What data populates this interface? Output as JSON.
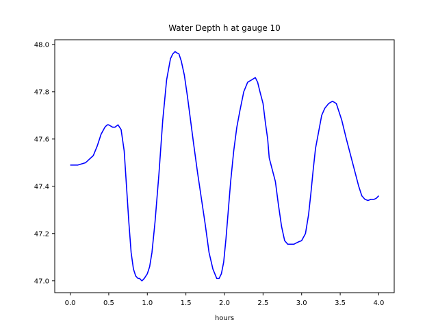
{
  "chart_data": {
    "type": "line",
    "title": "Water Depth h at gauge 10",
    "xlabel": "hours",
    "ylabel": "",
    "xlim": [
      -0.2,
      4.2
    ],
    "ylim": [
      46.95,
      48.02
    ],
    "xticks": [
      0.0,
      0.5,
      1.0,
      1.5,
      2.0,
      2.5,
      3.0,
      3.5,
      4.0
    ],
    "xtick_labels": [
      "0.0",
      "0.5",
      "1.0",
      "1.5",
      "2.0",
      "2.5",
      "3.0",
      "3.5",
      "4.0"
    ],
    "yticks": [
      47.0,
      47.2,
      47.4,
      47.6,
      47.8,
      48.0
    ],
    "ytick_labels": [
      "47.0",
      "47.2",
      "47.4",
      "47.6",
      "47.8",
      "48.0"
    ],
    "grid": false,
    "series": [
      {
        "color": "#0000ff",
        "x": [
          0.0,
          0.1,
          0.2,
          0.3,
          0.35,
          0.4,
          0.45,
          0.48,
          0.5,
          0.55,
          0.58,
          0.62,
          0.66,
          0.7,
          0.73,
          0.76,
          0.79,
          0.82,
          0.85,
          0.88,
          0.9,
          0.93,
          0.96,
          0.98,
          1.0,
          1.03,
          1.06,
          1.1,
          1.15,
          1.2,
          1.25,
          1.3,
          1.33,
          1.36,
          1.38,
          1.41,
          1.44,
          1.48,
          1.52,
          1.56,
          1.6,
          1.65,
          1.7,
          1.75,
          1.8,
          1.85,
          1.9,
          1.93,
          1.96,
          1.99,
          2.02,
          2.05,
          2.08,
          2.12,
          2.16,
          2.2,
          2.25,
          2.3,
          2.35,
          2.4,
          2.43,
          2.46,
          2.5,
          2.53,
          2.56,
          2.58,
          2.62,
          2.66,
          2.7,
          2.74,
          2.78,
          2.82,
          2.86,
          2.9,
          2.93,
          2.96,
          3.0,
          3.05,
          3.09,
          3.12,
          3.15,
          3.18,
          3.22,
          3.26,
          3.3,
          3.35,
          3.4,
          3.45,
          3.48,
          3.52,
          3.55,
          3.58,
          3.62,
          3.66,
          3.7,
          3.74,
          3.78,
          3.82,
          3.86,
          3.9,
          3.94,
          3.97,
          4.0
        ],
        "y": [
          47.49,
          47.49,
          47.5,
          47.53,
          47.57,
          47.62,
          47.65,
          47.66,
          47.66,
          47.65,
          47.65,
          47.66,
          47.64,
          47.55,
          47.4,
          47.25,
          47.12,
          47.05,
          47.02,
          47.01,
          47.01,
          47.0,
          47.01,
          47.02,
          47.03,
          47.06,
          47.12,
          47.25,
          47.45,
          47.68,
          47.85,
          47.94,
          47.96,
          47.97,
          47.965,
          47.96,
          47.93,
          47.87,
          47.78,
          47.68,
          47.58,
          47.46,
          47.35,
          47.24,
          47.12,
          47.05,
          47.01,
          47.01,
          47.03,
          47.08,
          47.18,
          47.3,
          47.42,
          47.55,
          47.65,
          47.72,
          47.8,
          47.84,
          47.85,
          47.86,
          47.84,
          47.8,
          47.75,
          47.67,
          47.6,
          47.52,
          47.47,
          47.42,
          47.32,
          47.23,
          47.17,
          47.155,
          47.155,
          47.155,
          47.16,
          47.165,
          47.17,
          47.2,
          47.28,
          47.37,
          47.47,
          47.56,
          47.63,
          47.7,
          47.73,
          47.75,
          47.76,
          47.75,
          47.72,
          47.68,
          47.64,
          47.6,
          47.55,
          47.5,
          47.45,
          47.4,
          47.36,
          47.345,
          47.34,
          47.345,
          47.345,
          47.35,
          47.36
        ]
      }
    ]
  }
}
